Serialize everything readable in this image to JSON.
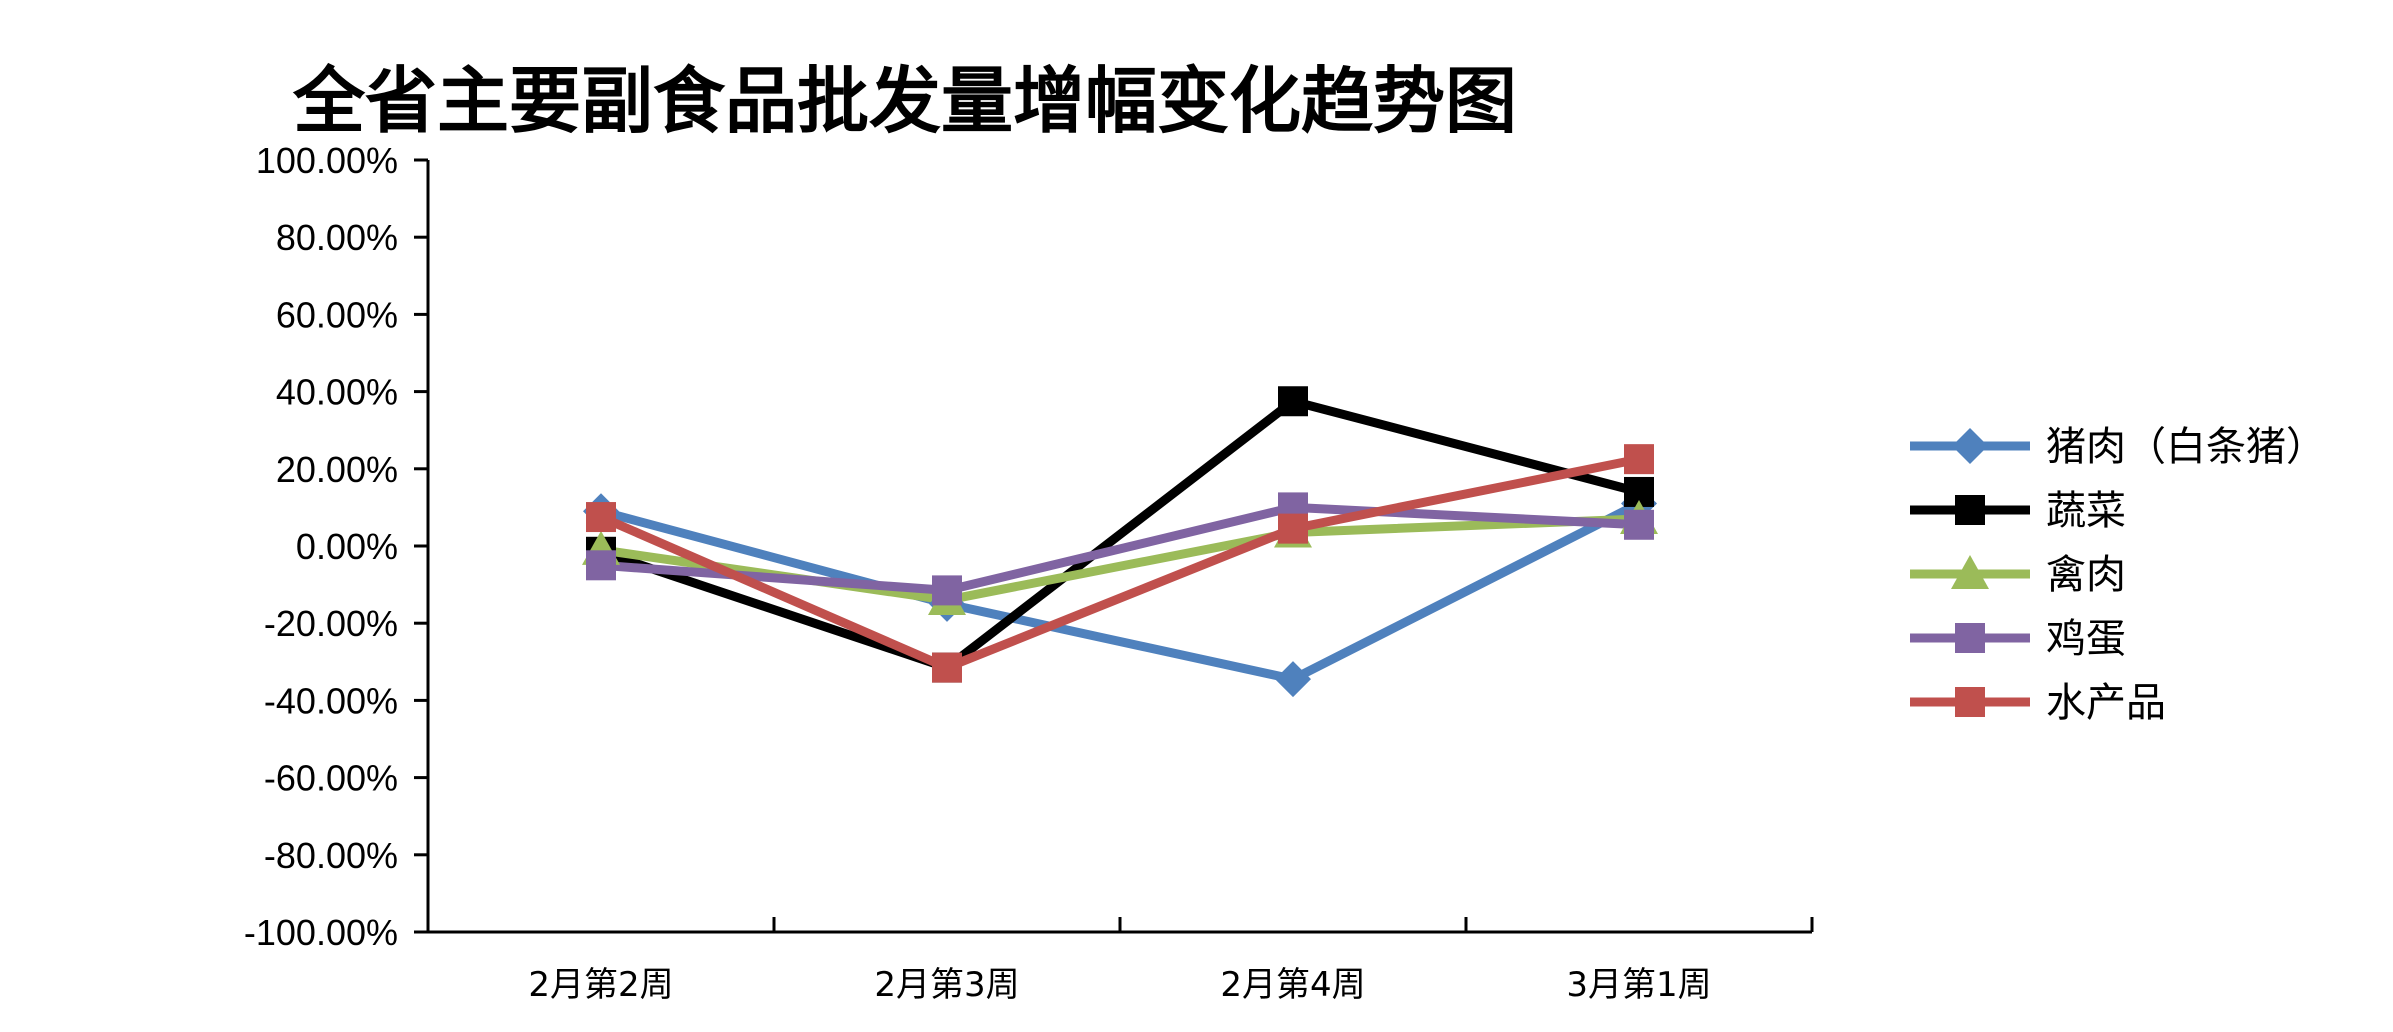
{
  "chart_data": {
    "type": "line",
    "title": "全省主要副食品批发量增幅变化趋势图",
    "categories": [
      "2月第2周",
      "2月第3周",
      "2月第4周",
      "3月第1周"
    ],
    "ylim": [
      -100,
      100
    ],
    "y_ticks": [
      "100.00%",
      "80.00%",
      "60.00%",
      "40.00%",
      "20.00%",
      "0.00%",
      "-20.00%",
      "-40.00%",
      "-60.00%",
      "-80.00%",
      "-100.00%"
    ],
    "y_tick_values": [
      100,
      80,
      60,
      40,
      20,
      0,
      -20,
      -40,
      -60,
      -80,
      -100
    ],
    "grid": false,
    "legend_position": "right",
    "series": [
      {
        "name": "猪肉（白条猪）",
        "color": "#4F81BD",
        "marker": "diamond",
        "values": [
          9,
          -15,
          -34.5,
          11
        ]
      },
      {
        "name": "蔬菜",
        "color": "#000000",
        "marker": "square",
        "values": [
          -1.5,
          -31.5,
          37.5,
          14
        ]
      },
      {
        "name": "禽肉",
        "color": "#9BBB59",
        "marker": "triangle",
        "values": [
          -1,
          -14,
          3.5,
          7
        ]
      },
      {
        "name": "鸡蛋",
        "color": "#8064A2",
        "marker": "square",
        "values": [
          -5,
          -11.5,
          10,
          5.5
        ]
      },
      {
        "name": "水产品",
        "color": "#C0504D",
        "marker": "square",
        "values": [
          7.5,
          -31.5,
          4.5,
          22.5
        ]
      }
    ]
  }
}
